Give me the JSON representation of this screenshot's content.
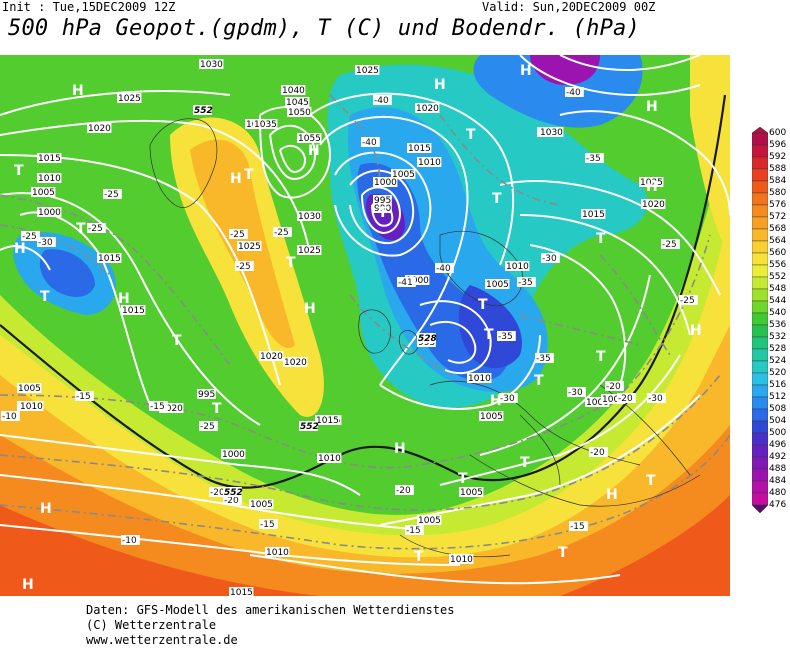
{
  "header": {
    "init": "Init : Tue,15DEC2009 12Z",
    "valid": "Valid: Sun,20DEC2009 00Z",
    "title": "500 hPa Geopot.(gpdm), T (C) und Bodendr. (hPa)"
  },
  "footer": {
    "line1": "Daten: GFS-Modell des amerikanischen Wetterdienstes",
    "line2": "(C) Wetterzentrale",
    "line3": "www.wetterzentrale.de"
  },
  "colorbar": {
    "labels": [
      "600",
      "596",
      "592",
      "588",
      "584",
      "580",
      "576",
      "572",
      "568",
      "564",
      "560",
      "556",
      "552",
      "548",
      "544",
      "540",
      "536",
      "532",
      "528",
      "524",
      "520",
      "516",
      "512",
      "508",
      "504",
      "500",
      "496",
      "492",
      "488",
      "484",
      "480",
      "476"
    ],
    "colors": [
      "#b0104a",
      "#c4153d",
      "#d8262a",
      "#e84020",
      "#ef5a1a",
      "#f2741c",
      "#f58a1f",
      "#f7a124",
      "#f9b82a",
      "#fbcf30",
      "#f6e23a",
      "#e9ee3a",
      "#c6ea32",
      "#9fe12a",
      "#6fd62a",
      "#3fc932",
      "#26c24e",
      "#20c47a",
      "#22c8a2",
      "#26c9c4",
      "#2ac2e4",
      "#2aa8ee",
      "#2a8aee",
      "#2a6ae6",
      "#3048d8",
      "#4830c8",
      "#6420c0",
      "#8018b8",
      "#9c14b0",
      "#b410a8",
      "#c80ca0",
      "#5a0a6a"
    ]
  },
  "map": {
    "pressure_labels": [
      {
        "t": "1030"
      },
      {
        "t": "1025"
      },
      {
        "t": "1020"
      },
      {
        "t": "1015"
      },
      {
        "t": "1010"
      },
      {
        "t": "1005"
      },
      {
        "t": "1000"
      },
      {
        "t": "1040"
      },
      {
        "t": "1045"
      },
      {
        "t": "1050"
      },
      {
        "t": "1055"
      },
      {
        "t": "1035"
      },
      {
        "t": "1025"
      },
      {
        "t": "1020"
      },
      {
        "t": "1015"
      },
      {
        "t": "1010"
      },
      {
        "t": "1005"
      },
      {
        "t": "1000"
      },
      {
        "t": "995"
      },
      {
        "t": "990"
      },
      {
        "t": "1030"
      },
      {
        "t": "1025"
      },
      {
        "t": "1020"
      },
      {
        "t": "1015"
      },
      {
        "t": "1010"
      },
      {
        "t": "1005"
      },
      {
        "t": "1000"
      },
      {
        "t": "995"
      },
      {
        "t": "1010"
      },
      {
        "t": "1005"
      },
      {
        "t": "1000"
      },
      {
        "t": "1010"
      },
      {
        "t": "1015"
      },
      {
        "t": "1020"
      },
      {
        "t": "1025"
      },
      {
        "t": "1030"
      },
      {
        "t": "1035"
      },
      {
        "t": "1030"
      },
      {
        "t": "1025"
      },
      {
        "t": "1020"
      },
      {
        "t": "1015"
      },
      {
        "t": "1020"
      },
      {
        "t": "1005"
      },
      {
        "t": "1010"
      },
      {
        "t": "1005"
      },
      {
        "t": "1000"
      },
      {
        "t": "1010"
      },
      {
        "t": "1015"
      },
      {
        "t": "1010"
      },
      {
        "t": "1005"
      },
      {
        "t": "1010"
      },
      {
        "t": "1015"
      },
      {
        "t": "1005"
      },
      {
        "t": "1000"
      },
      {
        "t": "995"
      },
      {
        "t": "1015"
      }
    ],
    "temp_labels": [
      {
        "t": "-25"
      },
      {
        "t": "-30"
      },
      {
        "t": "-25"
      },
      {
        "t": "-25"
      },
      {
        "t": "-25"
      },
      {
        "t": "-25"
      },
      {
        "t": "-40"
      },
      {
        "t": "-40"
      },
      {
        "t": "-40"
      },
      {
        "t": "-35"
      },
      {
        "t": "-40"
      },
      {
        "t": "-41"
      },
      {
        "t": "-35"
      },
      {
        "t": "-30"
      },
      {
        "t": "-35"
      },
      {
        "t": "-30"
      },
      {
        "t": "-25"
      },
      {
        "t": "-35"
      },
      {
        "t": "-30"
      },
      {
        "t": "-25"
      },
      {
        "t": "-20"
      },
      {
        "t": "-20"
      },
      {
        "t": "-20"
      },
      {
        "t": "-15"
      },
      {
        "t": "-25"
      },
      {
        "t": "-20"
      },
      {
        "t": "-15"
      },
      {
        "t": "-15"
      },
      {
        "t": "-10"
      },
      {
        "t": "-20"
      },
      {
        "t": "-15"
      },
      {
        "t": "-10"
      },
      {
        "t": "-20"
      },
      {
        "t": "-30"
      },
      {
        "t": "-15"
      },
      {
        "t": "-25"
      }
    ],
    "geopot_labels": [
      {
        "t": "552"
      },
      {
        "t": "552"
      },
      {
        "t": "552"
      },
      {
        "t": "528"
      }
    ],
    "centers": [
      {
        "t": "H"
      },
      {
        "t": "H"
      },
      {
        "t": "H"
      },
      {
        "t": "H"
      },
      {
        "t": "H"
      },
      {
        "t": "H"
      },
      {
        "t": "H"
      },
      {
        "t": "H"
      },
      {
        "t": "H"
      },
      {
        "t": "H"
      },
      {
        "t": "H"
      },
      {
        "t": "H"
      },
      {
        "t": "H"
      },
      {
        "t": "H"
      },
      {
        "t": "H"
      },
      {
        "t": "H"
      },
      {
        "t": "T"
      },
      {
        "t": "T"
      },
      {
        "t": "T"
      },
      {
        "t": "T"
      },
      {
        "t": "T"
      },
      {
        "t": "T"
      },
      {
        "t": "T"
      },
      {
        "t": "T"
      },
      {
        "t": "T"
      },
      {
        "t": "T"
      },
      {
        "t": "T"
      },
      {
        "t": "T"
      },
      {
        "t": "T"
      },
      {
        "t": "T"
      },
      {
        "t": "T"
      },
      {
        "t": "T"
      },
      {
        "t": "T"
      },
      {
        "t": "T"
      },
      {
        "t": "T"
      },
      {
        "t": "T"
      }
    ]
  }
}
